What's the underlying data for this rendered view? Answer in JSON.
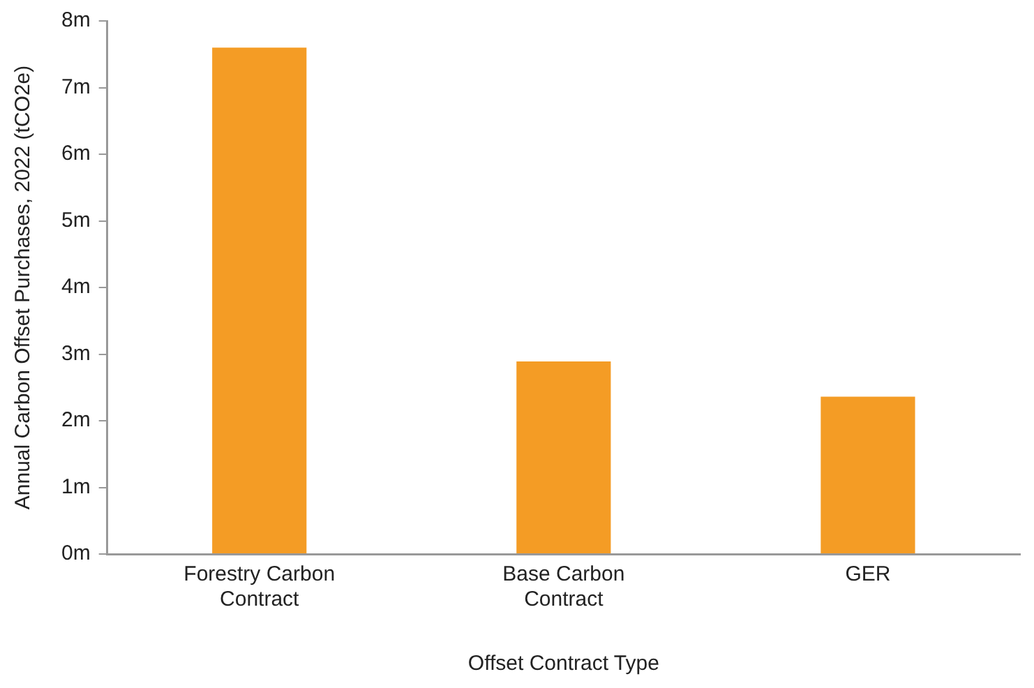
{
  "chart_data": {
    "type": "bar",
    "xlabel": "Offset Contract Type",
    "ylabel": "Annual Carbon Offset Purchases, 2022 (tCO2e)",
    "categories": [
      "Forestry Carbon Contract",
      "Base Carbon Contract",
      "GER"
    ],
    "values": [
      7.6,
      2.89,
      2.36
    ],
    "color": "#f49c25",
    "ylim": [
      0,
      8
    ],
    "yticks": [
      {
        "value": 0,
        "label": "0m"
      },
      {
        "value": 1,
        "label": "1m"
      },
      {
        "value": 2,
        "label": "2m"
      },
      {
        "value": 3,
        "label": "3m"
      },
      {
        "value": 4,
        "label": "4m"
      },
      {
        "value": 5,
        "label": "5m"
      },
      {
        "value": 6,
        "label": "6m"
      },
      {
        "value": 7,
        "label": "7m"
      },
      {
        "value": 8,
        "label": "8m"
      }
    ],
    "grid": false,
    "legend": false
  }
}
